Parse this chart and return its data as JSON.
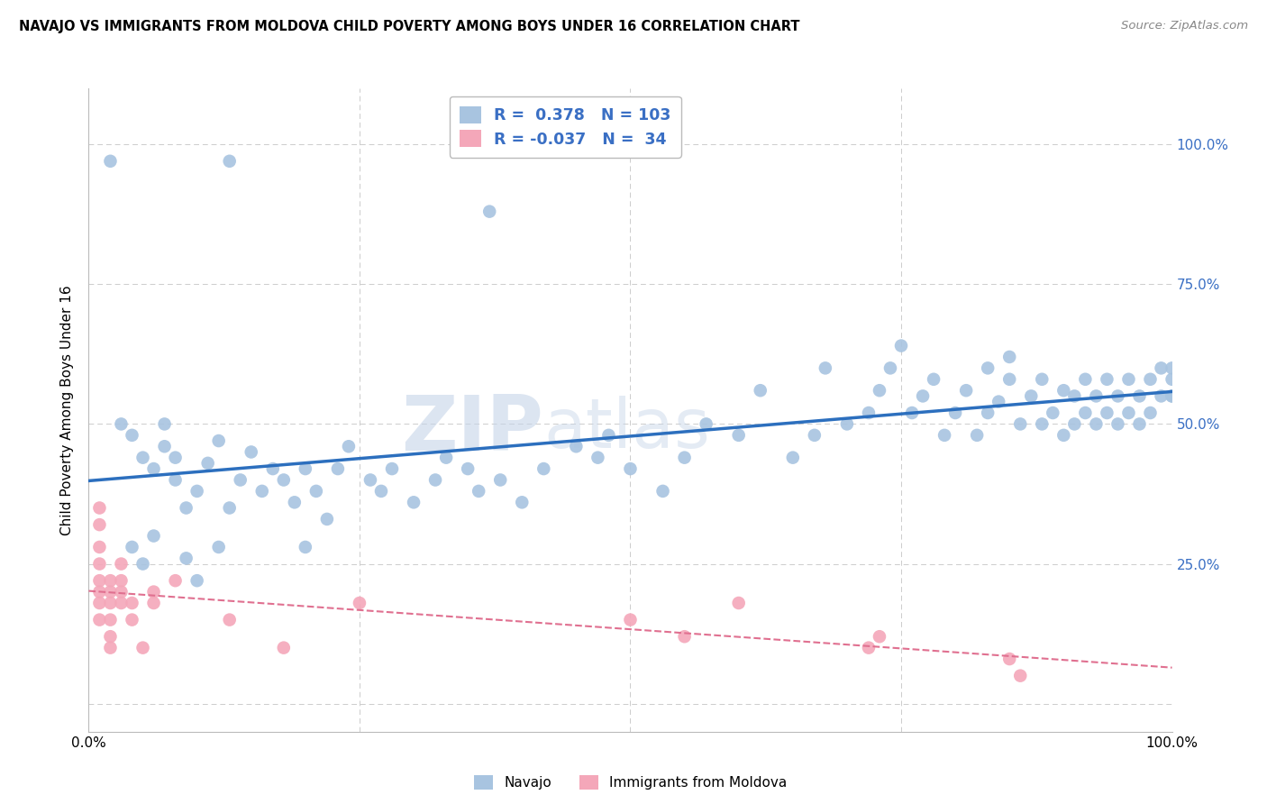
{
  "title": "NAVAJO VS IMMIGRANTS FROM MOLDOVA CHILD POVERTY AMONG BOYS UNDER 16 CORRELATION CHART",
  "source": "Source: ZipAtlas.com",
  "ylabel": "Child Poverty Among Boys Under 16",
  "navajo_R": 0.378,
  "navajo_N": 103,
  "moldova_R": -0.037,
  "moldova_N": 34,
  "navajo_color": "#a8c4e0",
  "moldova_color": "#f4a7b9",
  "navajo_line_color": "#2c6fbe",
  "moldova_line_color": "#e07090",
  "background_color": "#ffffff",
  "grid_color": "#cccccc",
  "watermark_zip": "ZIP",
  "watermark_atlas": "atlas",
  "xlim": [
    0.0,
    1.0
  ],
  "ylim": [
    -0.05,
    1.1
  ],
  "yticks": [
    0.0,
    0.25,
    0.5,
    0.75,
    1.0
  ],
  "ytick_labels": [
    "",
    "25.0%",
    "50.0%",
    "75.0%",
    "100.0%"
  ],
  "navajo_x": [
    0.02,
    0.13,
    0.37,
    0.03,
    0.04,
    0.05,
    0.06,
    0.07,
    0.07,
    0.08,
    0.08,
    0.09,
    0.1,
    0.11,
    0.12,
    0.13,
    0.14,
    0.15,
    0.16,
    0.17,
    0.18,
    0.19,
    0.2,
    0.21,
    0.22,
    0.23,
    0.24,
    0.26,
    0.27,
    0.28,
    0.3,
    0.32,
    0.33,
    0.35,
    0.36,
    0.38,
    0.4,
    0.42,
    0.45,
    0.47,
    0.48,
    0.5,
    0.53,
    0.55,
    0.57,
    0.6,
    0.62,
    0.65,
    0.67,
    0.68,
    0.7,
    0.72,
    0.73,
    0.74,
    0.75,
    0.76,
    0.77,
    0.78,
    0.79,
    0.8,
    0.81,
    0.82,
    0.83,
    0.83,
    0.84,
    0.85,
    0.85,
    0.86,
    0.87,
    0.88,
    0.88,
    0.89,
    0.9,
    0.9,
    0.91,
    0.91,
    0.92,
    0.92,
    0.93,
    0.93,
    0.94,
    0.94,
    0.95,
    0.95,
    0.96,
    0.96,
    0.97,
    0.97,
    0.98,
    0.98,
    0.99,
    0.99,
    1.0,
    1.0,
    1.0,
    1.0,
    0.04,
    0.05,
    0.06,
    0.09,
    0.1,
    0.12,
    0.2
  ],
  "navajo_y": [
    0.97,
    0.97,
    0.88,
    0.5,
    0.48,
    0.44,
    0.42,
    0.46,
    0.5,
    0.44,
    0.4,
    0.35,
    0.38,
    0.43,
    0.47,
    0.35,
    0.4,
    0.45,
    0.38,
    0.42,
    0.4,
    0.36,
    0.42,
    0.38,
    0.33,
    0.42,
    0.46,
    0.4,
    0.38,
    0.42,
    0.36,
    0.4,
    0.44,
    0.42,
    0.38,
    0.4,
    0.36,
    0.42,
    0.46,
    0.44,
    0.48,
    0.42,
    0.38,
    0.44,
    0.5,
    0.48,
    0.56,
    0.44,
    0.48,
    0.6,
    0.5,
    0.52,
    0.56,
    0.6,
    0.64,
    0.52,
    0.55,
    0.58,
    0.48,
    0.52,
    0.56,
    0.48,
    0.52,
    0.6,
    0.54,
    0.62,
    0.58,
    0.5,
    0.55,
    0.5,
    0.58,
    0.52,
    0.56,
    0.48,
    0.5,
    0.55,
    0.52,
    0.58,
    0.5,
    0.55,
    0.52,
    0.58,
    0.5,
    0.55,
    0.52,
    0.58,
    0.5,
    0.55,
    0.52,
    0.58,
    0.55,
    0.6,
    0.55,
    0.58,
    0.55,
    0.6,
    0.28,
    0.25,
    0.3,
    0.26,
    0.22,
    0.28,
    0.28
  ],
  "moldova_x": [
    0.01,
    0.01,
    0.01,
    0.01,
    0.01,
    0.01,
    0.01,
    0.01,
    0.02,
    0.02,
    0.02,
    0.02,
    0.02,
    0.02,
    0.03,
    0.03,
    0.03,
    0.03,
    0.04,
    0.04,
    0.05,
    0.06,
    0.06,
    0.08,
    0.13,
    0.18,
    0.25,
    0.5,
    0.55,
    0.6,
    0.72,
    0.73,
    0.85,
    0.86
  ],
  "moldova_y": [
    0.2,
    0.22,
    0.18,
    0.15,
    0.25,
    0.28,
    0.32,
    0.35,
    0.2,
    0.22,
    0.18,
    0.15,
    0.12,
    0.1,
    0.2,
    0.22,
    0.18,
    0.25,
    0.15,
    0.18,
    0.1,
    0.2,
    0.18,
    0.22,
    0.15,
    0.1,
    0.18,
    0.15,
    0.12,
    0.18,
    0.1,
    0.12,
    0.08,
    0.05
  ]
}
